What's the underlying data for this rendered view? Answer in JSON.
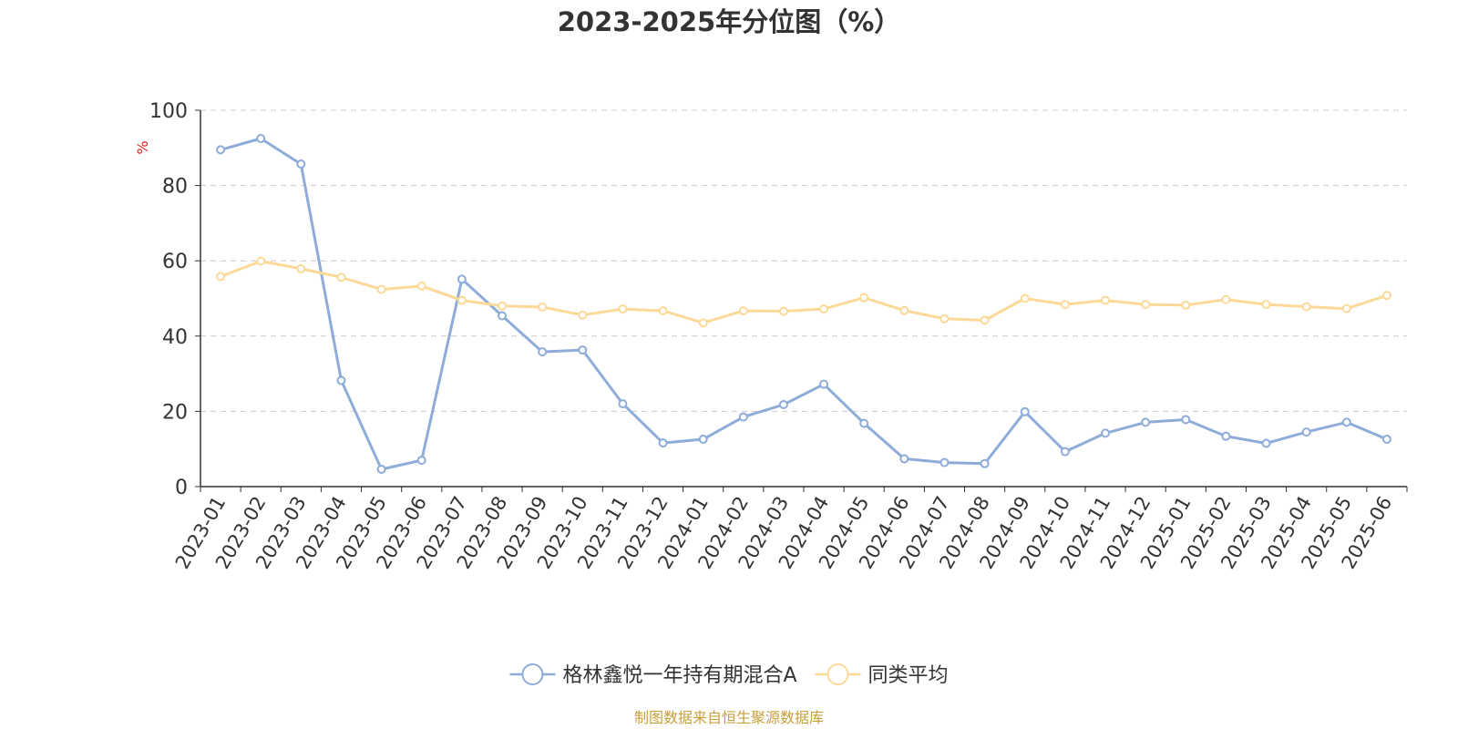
{
  "chart_data": {
    "type": "line",
    "title": "2023-2025年分位图（%）",
    "ylabel": "%",
    "ylim": [
      0,
      100
    ],
    "yticks": [
      0,
      20,
      40,
      60,
      80,
      100
    ],
    "grid": true,
    "legend_position": "bottom-center",
    "categories": [
      "2023-01",
      "2023-02",
      "2023-03",
      "2023-04",
      "2023-05",
      "2023-06",
      "2023-07",
      "2023-08",
      "2023-09",
      "2023-10",
      "2023-11",
      "2023-12",
      "2024-01",
      "2024-02",
      "2024-03",
      "2024-04",
      "2024-05",
      "2024-06",
      "2024-07",
      "2024-08",
      "2024-09",
      "2024-10",
      "2024-11",
      "2024-12",
      "2025-01",
      "2025-02",
      "2025-03",
      "2025-04",
      "2025-05",
      "2025-06"
    ],
    "series": [
      {
        "name": "格林鑫悦一年持有期混合A",
        "color": "#8eacd8",
        "values": [
          89.5,
          92.5,
          85.7,
          28.2,
          4.6,
          7.0,
          55.1,
          45.4,
          35.8,
          36.3,
          22.0,
          11.6,
          12.6,
          18.5,
          21.8,
          27.2,
          16.8,
          7.4,
          6.4,
          6.1,
          19.9,
          9.3,
          14.2,
          17.1,
          17.8,
          13.4,
          11.5,
          14.5,
          17.1,
          12.6
        ]
      },
      {
        "name": "同类平均",
        "color": "#fcd999",
        "values": [
          55.8,
          59.9,
          57.9,
          55.6,
          52.4,
          53.3,
          49.5,
          48.0,
          47.7,
          45.6,
          47.2,
          46.7,
          43.5,
          46.7,
          46.6,
          47.2,
          50.2,
          46.8,
          44.6,
          44.2,
          50.0,
          48.4,
          49.5,
          48.4,
          48.2,
          49.7,
          48.4,
          47.8,
          47.3,
          50.8
        ]
      }
    ]
  },
  "footer": {
    "source": "制图数据来自恒生聚源数据库"
  }
}
